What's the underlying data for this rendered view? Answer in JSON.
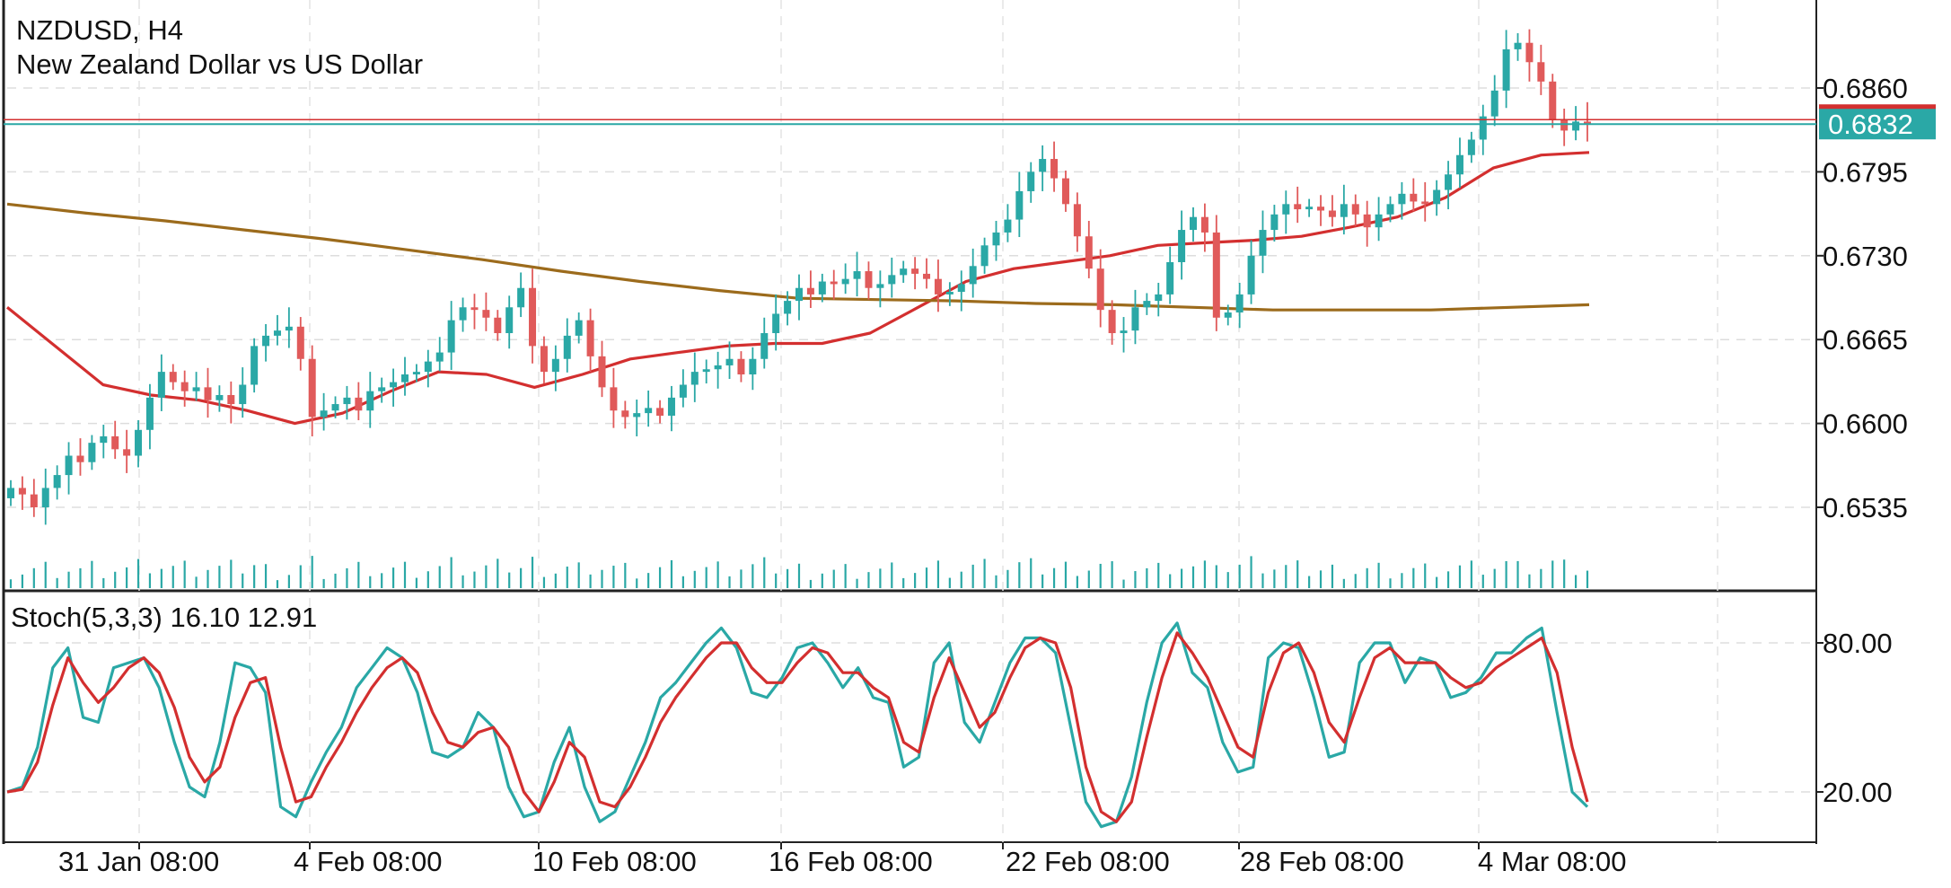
{
  "chart_data": [
    {
      "type": "candlestick",
      "symbol_title": "NZDUSD, H4",
      "subtitle": "New Zealand Dollar vs US Dollar",
      "current_price": "0.6832",
      "price_ticks": [
        "0.6860",
        "0.6795",
        "0.6730",
        "0.6665",
        "0.6600",
        "0.6535"
      ],
      "ylim": [
        0.648,
        0.692
      ],
      "x_tick_labels": [
        "31 Jan 08:00",
        "4 Feb 08:00",
        "10 Feb 08:00",
        "16 Feb 08:00",
        "22 Feb 08:00",
        "28 Feb 08:00",
        "4 Mar 08:00"
      ],
      "close_series": [
        0.655,
        0.6545,
        0.6535,
        0.655,
        0.656,
        0.6575,
        0.657,
        0.6585,
        0.659,
        0.658,
        0.6575,
        0.6595,
        0.662,
        0.664,
        0.6632,
        0.6625,
        0.6628,
        0.6618,
        0.6622,
        0.6615,
        0.663,
        0.666,
        0.6668,
        0.6672,
        0.6675,
        0.665,
        0.6605,
        0.661,
        0.6615,
        0.662,
        0.661,
        0.6625,
        0.6628,
        0.6632,
        0.6638,
        0.664,
        0.6648,
        0.6655,
        0.668,
        0.669,
        0.6688,
        0.6682,
        0.667,
        0.669,
        0.6705,
        0.666,
        0.664,
        0.665,
        0.6668,
        0.668,
        0.6652,
        0.6628,
        0.661,
        0.6605,
        0.6608,
        0.6612,
        0.6606,
        0.662,
        0.663,
        0.664,
        0.6642,
        0.6645,
        0.665,
        0.6638,
        0.665,
        0.667,
        0.6685,
        0.6695,
        0.6705,
        0.67,
        0.671,
        0.6708,
        0.6712,
        0.6718,
        0.6705,
        0.6708,
        0.6715,
        0.672,
        0.6716,
        0.6712,
        0.67,
        0.6702,
        0.6708,
        0.6722,
        0.6738,
        0.6748,
        0.6758,
        0.678,
        0.6795,
        0.6805,
        0.679,
        0.677,
        0.6745,
        0.672,
        0.6688,
        0.667,
        0.6672,
        0.669,
        0.6695,
        0.67,
        0.6725,
        0.675,
        0.676,
        0.6748,
        0.6682,
        0.6686,
        0.67,
        0.673,
        0.675,
        0.6762,
        0.677,
        0.6766,
        0.6768,
        0.6765,
        0.676,
        0.677,
        0.6762,
        0.6752,
        0.6762,
        0.677,
        0.6778,
        0.6772,
        0.677,
        0.6781,
        0.6793,
        0.6808,
        0.682,
        0.6838,
        0.6858,
        0.689,
        0.6895,
        0.688,
        0.6865,
        0.6835,
        0.6827,
        0.6834,
        0.6832
      ],
      "series": [
        {
          "name": "MA fast (red)",
          "color": "#d32f2f",
          "values": [
            0.669,
            0.666,
            0.663,
            0.6622,
            0.6618,
            0.661,
            0.66,
            0.6608,
            0.6625,
            0.664,
            0.6638,
            0.6628,
            0.6638,
            0.665,
            0.6655,
            0.666,
            0.6662,
            0.6662,
            0.667,
            0.669,
            0.671,
            0.672,
            0.6725,
            0.673,
            0.6738,
            0.674,
            0.6742,
            0.6745,
            0.6752,
            0.676,
            0.6775,
            0.6798,
            0.6808,
            0.681
          ]
        },
        {
          "name": "MA slow (brown)",
          "color": "#9c6b1c",
          "values": [
            0.677,
            0.6763,
            0.6757,
            0.675,
            0.6743,
            0.6735,
            0.6727,
            0.6718,
            0.671,
            0.6703,
            0.6697,
            0.6696,
            0.6695,
            0.6693,
            0.6692,
            0.669,
            0.6688,
            0.6688,
            0.6688,
            0.669,
            0.6692
          ]
        }
      ],
      "volume_range": [
        0,
        46
      ]
    },
    {
      "type": "line",
      "indicator_label": "Stoch(5,3,3) 16.10 12.91",
      "y_ticks": [
        "80.00",
        "20.00"
      ],
      "ylim": [
        0,
        100
      ],
      "series": [
        {
          "name": "%K (teal)",
          "color": "#2aa8a6",
          "values": [
            20,
            22,
            38,
            70,
            78,
            50,
            48,
            70,
            72,
            74,
            62,
            40,
            22,
            18,
            40,
            72,
            70,
            60,
            14,
            10,
            24,
            36,
            46,
            62,
            70,
            78,
            74,
            60,
            36,
            34,
            38,
            52,
            46,
            22,
            10,
            12,
            32,
            46,
            22,
            8,
            12,
            26,
            40,
            58,
            64,
            72,
            80,
            86,
            78,
            60,
            58,
            66,
            78,
            80,
            72,
            62,
            70,
            58,
            56,
            30,
            34,
            72,
            80,
            48,
            40,
            56,
            72,
            82,
            82,
            76,
            46,
            16,
            6,
            8,
            26,
            56,
            80,
            88,
            68,
            62,
            40,
            28,
            30,
            74,
            80,
            78,
            58,
            34,
            36,
            72,
            80,
            80,
            64,
            74,
            72,
            58,
            60,
            66,
            76,
            76,
            82,
            86,
            52,
            20,
            14
          ]
        },
        {
          "name": "%D (red)",
          "color": "#d32f2f",
          "values": [
            20,
            21,
            32,
            55,
            74,
            64,
            56,
            62,
            70,
            74,
            68,
            54,
            34,
            24,
            30,
            50,
            64,
            66,
            38,
            16,
            18,
            30,
            40,
            52,
            62,
            70,
            74,
            68,
            52,
            40,
            38,
            44,
            46,
            38,
            20,
            12,
            24,
            40,
            34,
            16,
            14,
            22,
            34,
            48,
            58,
            66,
            74,
            80,
            80,
            70,
            64,
            64,
            72,
            78,
            76,
            68,
            68,
            62,
            58,
            40,
            36,
            58,
            74,
            60,
            46,
            52,
            66,
            78,
            82,
            80,
            62,
            30,
            12,
            8,
            16,
            42,
            66,
            84,
            76,
            66,
            52,
            38,
            34,
            60,
            76,
            80,
            68,
            48,
            40,
            58,
            74,
            78,
            72,
            72,
            72,
            66,
            62,
            64,
            70,
            74,
            78,
            82,
            68,
            38,
            16
          ]
        }
      ]
    }
  ]
}
